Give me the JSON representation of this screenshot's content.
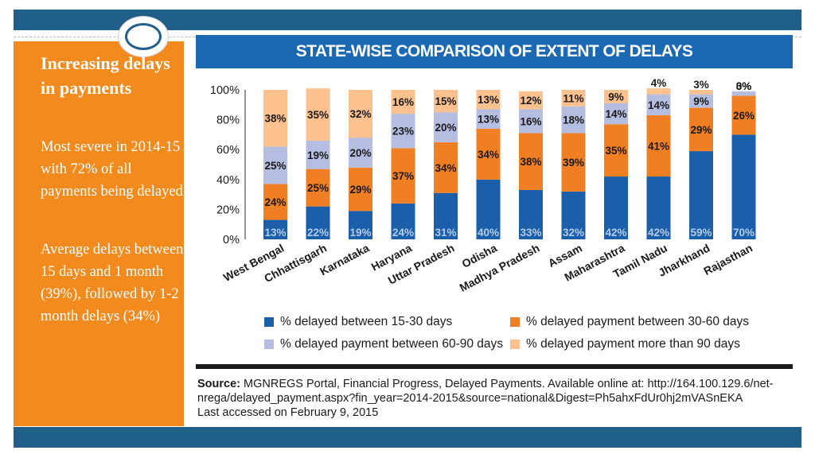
{
  "slide": {
    "heading": "Increasing delays in payments",
    "paragraphs": [
      "Most severe in 2014-15 with 72% of all payments being delayed",
      "Average delays between 15 days and 1 month (39%), followed by 1-2 month delays (34%)"
    ],
    "colors": {
      "top_bar": "#1f5f8a",
      "side_panel": "#f28a1e",
      "title_band": "#1b68b3"
    }
  },
  "chart_data": {
    "type": "bar",
    "stacked": true,
    "percent_stacked": true,
    "title": "STATE-WISE COMPARISON OF EXTENT OF DELAYS",
    "xlabel": "",
    "ylabel": "",
    "ylim": [
      0,
      100
    ],
    "yticks": [
      "0%",
      "20%",
      "40%",
      "60%",
      "80%",
      "100%"
    ],
    "categories": [
      "West Bengal",
      "Chhattisgarh",
      "Karnataka",
      "Haryana",
      "Uttar Pradesh",
      "Odisha",
      "Madhya Pradesh",
      "Assam",
      "Maharashtra",
      "Tamil Nadu",
      "Jharkhand",
      "Rajasthan"
    ],
    "series": [
      {
        "name": "% delayed between 15-30 days",
        "color": "#1b5ea9",
        "label_color": "#b6cbe6",
        "values": [
          13,
          22,
          19,
          24,
          31,
          40,
          33,
          32,
          42,
          42,
          59,
          70
        ]
      },
      {
        "name": "% delayed payment between 30-60 days",
        "color": "#f07e22",
        "label_color": "#1a1a1a",
        "values": [
          24,
          25,
          29,
          37,
          34,
          34,
          38,
          39,
          35,
          41,
          29,
          26
        ]
      },
      {
        "name": "% delayed payment between 60-90 days",
        "color": "#b5bde0",
        "label_color": "#1a1a1a",
        "values": [
          25,
          19,
          20,
          23,
          20,
          13,
          16,
          18,
          14,
          14,
          9,
          3
        ]
      },
      {
        "name": "% delayed payment more than 90 days",
        "color": "#fcc18f",
        "label_color": "#1a1a1a",
        "values": [
          38,
          35,
          32,
          16,
          15,
          13,
          12,
          11,
          9,
          4,
          3,
          0
        ]
      }
    ],
    "legend_position": "bottom",
    "grid": false
  },
  "source": {
    "label": "Source:",
    "line1": " MGNREGS Portal, Financial Progress, Delayed Payments. Available online at: http://164.100.129.6/net-",
    "line2": "nrega/delayed_payment.aspx?fin_year=2014-2015&source=national&Digest=Ph5ahxFdUr0hj2mVASnEKA",
    "line3": "Last accessed on February 9, 2015"
  }
}
